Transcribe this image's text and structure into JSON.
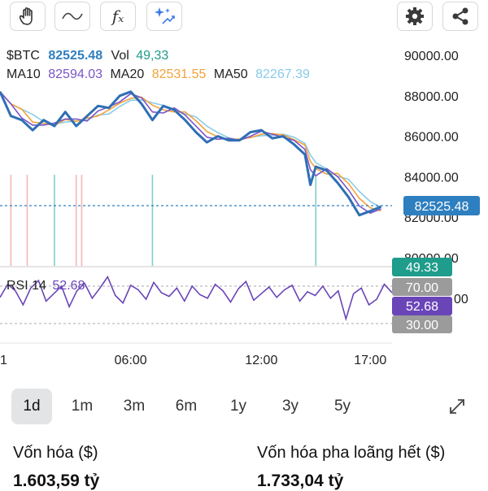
{
  "toolbar": {
    "left_icons": [
      "hand-icon",
      "line-tool-icon",
      "function-icon",
      "ai-sparkle-icon"
    ],
    "right_icons": [
      "gear-icon",
      "share-icon"
    ],
    "function_symbol": "fₓ"
  },
  "legend": {
    "symbol": "$BTC",
    "price": "82525.48",
    "vol_label": "Vol",
    "vol_value": "49,33",
    "ma10_label": "MA10",
    "ma10_value": "82594.03",
    "ma20_label": "MA20",
    "ma20_value": "82531.55",
    "ma50_label": "MA50",
    "ma50_value": "82267.39"
  },
  "rsi_legend": {
    "label": "RSI 14",
    "value": "52.68"
  },
  "badges": {
    "price": "82525.48",
    "volume": "49.33",
    "rsi_70": "70.00",
    "rsi_value": "52.68",
    "rsi_30": "30.00",
    "rsi_axis_partial": "00"
  },
  "colors": {
    "price_line": "#2f6fb5",
    "ma10": "#7b55c9",
    "ma20": "#f2a33a",
    "ma50": "#89cbe8",
    "volume_up": "#7fd0c8",
    "volume_down": "#f4b6b6",
    "rsi_line": "#6a45b8",
    "price_badge": "#2e7fc0",
    "volume_badge": "#1e9c8c",
    "rsi_badge": "#6a45b8",
    "level_badge": "#9b9b9b"
  },
  "chart_data": {
    "type": "line",
    "title": "$BTC",
    "y_ticks": [
      "90000.00",
      "88000.00",
      "86000.00",
      "84000.00",
      "82000.00",
      "80000.00"
    ],
    "x_ticks": [
      "1",
      "06:00",
      "12:00",
      "17:00"
    ],
    "ylim": [
      80000,
      90000
    ],
    "current_price": 82525.48,
    "series": [
      {
        "name": "$BTC",
        "x": [
          "00:00",
          "00:30",
          "01:00",
          "01:30",
          "02:00",
          "02:30",
          "03:00",
          "03:30",
          "04:00",
          "04:30",
          "05:00",
          "05:30",
          "06:00",
          "06:30",
          "07:00",
          "07:30",
          "08:00",
          "08:30",
          "09:00",
          "09:30",
          "10:00",
          "10:30",
          "11:00",
          "11:30",
          "12:00",
          "12:30",
          "13:00",
          "13:30",
          "14:00",
          "14:15",
          "14:30",
          "15:00",
          "15:30",
          "16:00",
          "16:30",
          "17:00",
          "17:30"
        ],
        "values": [
          88200,
          87000,
          86800,
          86300,
          86800,
          86500,
          87200,
          86500,
          87000,
          87500,
          87400,
          88000,
          88200,
          87600,
          86800,
          87500,
          87300,
          86800,
          86200,
          85700,
          86000,
          85800,
          85800,
          86200,
          86300,
          85900,
          86000,
          85600,
          85100,
          83600,
          84500,
          84300,
          83700,
          83000,
          82100,
          82300,
          82525
        ]
      }
    ],
    "volume": [
      {
        "x": "00:30",
        "direction": "down"
      },
      {
        "x": "01:15",
        "direction": "down"
      },
      {
        "x": "02:30",
        "direction": "up"
      },
      {
        "x": "03:30",
        "direction": "down"
      },
      {
        "x": "03:45",
        "direction": "down"
      },
      {
        "x": "07:00",
        "direction": "up"
      },
      {
        "x": "14:30",
        "direction": "up"
      }
    ],
    "rsi": {
      "period": 14,
      "current": 52.68,
      "levels": [
        70,
        30
      ],
      "values": [
        48,
        62,
        55,
        40,
        58,
        66,
        44,
        52,
        60,
        38,
        55,
        63,
        47,
        58,
        70,
        50,
        42,
        61,
        56,
        46,
        64,
        53,
        49,
        58,
        44,
        60,
        51,
        47,
        62,
        55,
        43,
        57,
        65,
        45,
        52,
        59,
        48,
        56,
        61,
        44,
        54,
        50,
        60,
        47,
        55,
        25,
        52,
        58,
        40,
        46,
        62,
        53
      ]
    }
  },
  "ranges": [
    "1d",
    "1m",
    "3m",
    "6m",
    "1y",
    "3y",
    "5y"
  ],
  "active_range": "1d",
  "stats": {
    "market_cap_label": "Vốn hóa ($)",
    "market_cap_value": "1.603,59 tỷ",
    "fdv_label": "Vốn hóa pha loãng hết ($)",
    "fdv_value": "1.733,04 tỷ"
  }
}
